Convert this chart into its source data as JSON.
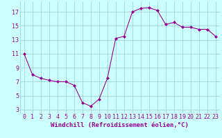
{
  "x": [
    0,
    1,
    2,
    3,
    4,
    5,
    6,
    7,
    8,
    9,
    10,
    11,
    12,
    13,
    14,
    15,
    16,
    17,
    18,
    19,
    20,
    21,
    22,
    23
  ],
  "y": [
    11.0,
    8.0,
    7.5,
    7.2,
    7.0,
    7.0,
    6.5,
    4.0,
    3.5,
    4.5,
    7.5,
    13.2,
    13.5,
    17.0,
    17.5,
    17.6,
    17.2,
    15.2,
    15.5,
    14.8,
    14.8,
    14.5,
    14.5,
    13.5
  ],
  "line_color": "#990099",
  "marker": "D",
  "marker_size": 2.0,
  "bg_color": "#ccffff",
  "grid_color": "#99cccc",
  "xlabel": "Windchill (Refroidissement éolien,°C)",
  "xlabel_color": "#990099",
  "xlabel_fontsize": 6.5,
  "tick_color": "#990099",
  "tick_fontsize": 6,
  "ylim": [
    2.5,
    18.5
  ],
  "xlim": [
    -0.5,
    23.5
  ],
  "yticks": [
    3,
    5,
    7,
    9,
    11,
    13,
    15,
    17
  ],
  "xticks": [
    0,
    1,
    2,
    3,
    4,
    5,
    6,
    7,
    8,
    9,
    10,
    11,
    12,
    13,
    14,
    15,
    16,
    17,
    18,
    19,
    20,
    21,
    22,
    23
  ]
}
